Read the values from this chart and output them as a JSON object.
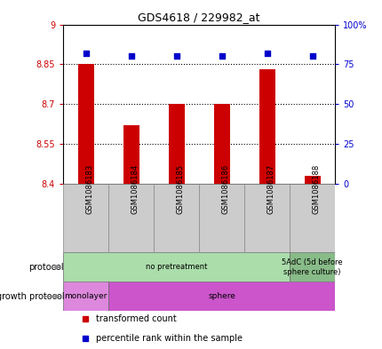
{
  "title": "GDS4618 / 229982_at",
  "samples": [
    "GSM1086183",
    "GSM1086184",
    "GSM1086185",
    "GSM1086186",
    "GSM1086187",
    "GSM1086188"
  ],
  "bar_values": [
    8.85,
    8.62,
    8.7,
    8.7,
    8.83,
    8.43
  ],
  "bar_base": 8.4,
  "percentile_values": [
    82,
    80,
    80,
    80,
    82,
    80
  ],
  "ylim_left": [
    8.4,
    9.0
  ],
  "ylim_right": [
    0,
    100
  ],
  "yticks_left": [
    8.4,
    8.55,
    8.7,
    8.85,
    9.0
  ],
  "ytick_labels_left": [
    "8.4",
    "8.55",
    "8.7",
    "8.85",
    "9"
  ],
  "yticks_right": [
    0,
    25,
    50,
    75,
    100
  ],
  "ytick_labels_right": [
    "0",
    "25",
    "50",
    "75",
    "100%"
  ],
  "hlines": [
    8.55,
    8.7,
    8.85
  ],
  "bar_color": "#cc0000",
  "dot_color": "#0000cc",
  "bar_width": 0.35,
  "protocol_groups": [
    {
      "label": "no pretreatment",
      "start": 0,
      "end": 5,
      "color": "#aaddaa"
    },
    {
      "label": "5AdC (5d before\nsphere culture)",
      "start": 5,
      "end": 6,
      "color": "#88bb88"
    }
  ],
  "growth_groups": [
    {
      "label": "monolayer",
      "start": 0,
      "end": 1,
      "color": "#dd88dd"
    },
    {
      "label": "sphere",
      "start": 1,
      "end": 6,
      "color": "#cc55cc"
    }
  ],
  "protocol_label": "protocol",
  "growth_label": "growth protocol",
  "legend_red_label": "transformed count",
  "legend_blue_label": "percentile rank within the sample",
  "tick_color_left": "#cc0000",
  "tick_color_right": "#0000cc",
  "sample_box_color": "#cccccc",
  "sample_box_edge": "#888888",
  "fig_width": 4.31,
  "fig_height": 3.93,
  "dpi": 100
}
